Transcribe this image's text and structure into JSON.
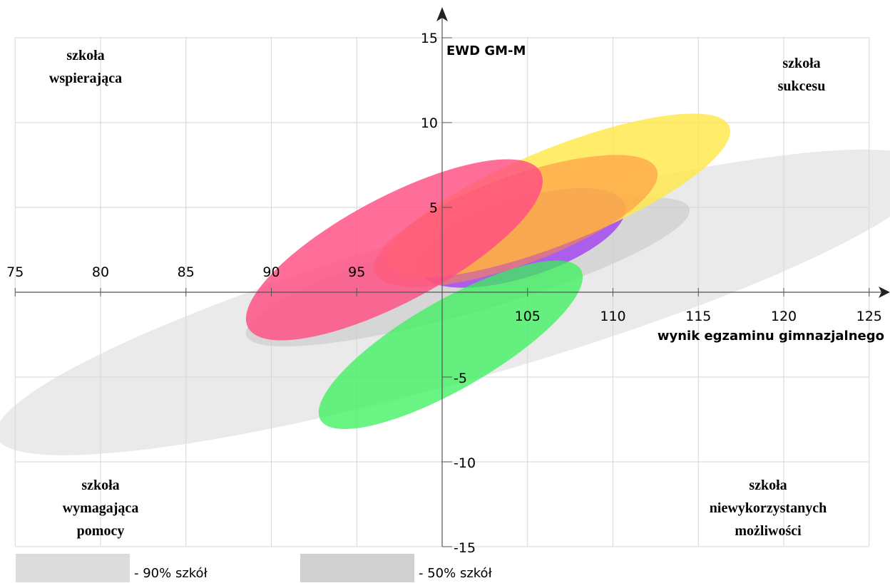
{
  "chart_data": {
    "type": "scatter",
    "xlabel": "wynik egzaminu gimnazjalnego",
    "ylabel": "EWD GM-M",
    "xlim": [
      75,
      125
    ],
    "ylim": [
      -15,
      15
    ],
    "x_ticks": [
      "75",
      "80",
      "85",
      "90",
      "95",
      "105",
      "110",
      "115",
      "120",
      "125"
    ],
    "y_ticks": [
      "15",
      "10",
      "5",
      "-5",
      "-10",
      "-15"
    ],
    "grid": true,
    "quadrant_labels": {
      "top_left": [
        "szkoła",
        "wspierająca"
      ],
      "top_right": [
        "szkoła",
        "sukcesu"
      ],
      "bottom_left": [
        "szkoła",
        "wymagająca",
        "pomocy"
      ],
      "bottom_right": [
        "szkoła",
        "niewykorzystanych",
        "możliwości"
      ]
    },
    "legend": [
      {
        "label": "- 90% szkół",
        "color": "#dcdcdc"
      },
      {
        "label": "- 50% szkół",
        "color": "#d0d0d0"
      }
    ],
    "ellipses": [
      {
        "role": "90% szkół",
        "cx": 101.3,
        "cy": -0.6,
        "rx": 28.5,
        "ry": 4.5,
        "angle": -16,
        "color": "#d9d9d9",
        "opacity": 0.55
      },
      {
        "role": "50% szkół",
        "cx": 101.5,
        "cy": 1.2,
        "rx": 13.5,
        "ry": 2.4,
        "angle": -16,
        "color": "#c8c8c8",
        "opacity": 0.6
      },
      {
        "cx": 104.7,
        "cy": 3.2,
        "rx": 6.3,
        "ry": 2.3,
        "angle": -18,
        "color": "#a040f0",
        "opacity": 0.8
      },
      {
        "cx": 106.8,
        "cy": 5.7,
        "rx": 10.8,
        "ry": 2.8,
        "angle": -22,
        "color": "#ffe84a",
        "opacity": 0.82
      },
      {
        "cx": 104.3,
        "cy": 4.2,
        "rx": 8.8,
        "ry": 2.6,
        "angle": -20,
        "color": "#ff8a3c",
        "opacity": 0.55
      },
      {
        "cx": 97.2,
        "cy": 2.5,
        "rx": 9.7,
        "ry": 3.1,
        "angle": -28,
        "color": "#ff4d82",
        "opacity": 0.82
      },
      {
        "cx": 100.5,
        "cy": -3.1,
        "rx": 8.8,
        "ry": 2.6,
        "angle": -30,
        "color": "#38f05a",
        "opacity": 0.75
      }
    ]
  }
}
